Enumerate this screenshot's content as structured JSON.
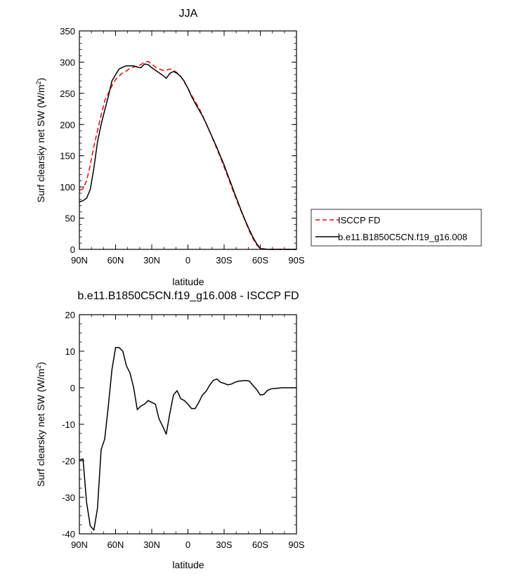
{
  "chart_data": [
    {
      "type": "line",
      "title": "JJA",
      "xlabel": "latitude",
      "ylabel_main": "Surf clearsky net SW (W/m",
      "ylabel_sup": "2",
      "ylabel_tail": ")",
      "xlim": [
        90,
        -90
      ],
      "ylim": [
        0,
        350
      ],
      "xticks": [
        90,
        60,
        30,
        0,
        -30,
        -60,
        -90
      ],
      "xtick_labels": [
        "90N",
        "60N",
        "30N",
        "0",
        "30S",
        "60S",
        "90S"
      ],
      "yticks": [
        0,
        50,
        100,
        150,
        200,
        250,
        300,
        350
      ],
      "ytick_labels": [
        "0",
        "50",
        "100",
        "150",
        "200",
        "250",
        "300",
        "350"
      ],
      "legend_position": "right",
      "series": [
        {
          "name": "ISCCP FD",
          "color": "#ff0000",
          "dash": "dashed",
          "x": [
            90,
            87,
            84,
            81,
            78,
            75,
            72,
            69,
            66,
            63,
            60,
            57,
            54,
            51,
            48,
            45,
            42,
            39,
            36,
            33,
            30,
            27,
            24,
            21,
            18,
            15,
            12,
            9,
            6,
            3,
            0,
            -3,
            -6,
            -9,
            -12,
            -15,
            -18,
            -21,
            -24,
            -27,
            -30,
            -33,
            -36,
            -39,
            -42,
            -45,
            -48,
            -51,
            -54,
            -57,
            -60,
            -63,
            -66,
            -69,
            -72,
            -75,
            -78,
            -81,
            -84,
            -87,
            -90
          ],
          "y": [
            95,
            97,
            110,
            135,
            165,
            190,
            215,
            238,
            250,
            262,
            272,
            278,
            283,
            286,
            290,
            292,
            294,
            296,
            300,
            301,
            297,
            292,
            289,
            287,
            287,
            289,
            287,
            283,
            277,
            268,
            258,
            247,
            237,
            227,
            215,
            202,
            189,
            175,
            161,
            147,
            132,
            117,
            101,
            86,
            71,
            57,
            43,
            29,
            17,
            7,
            2,
            1,
            0,
            0,
            0,
            0,
            0,
            0,
            0,
            0,
            0
          ]
        },
        {
          "name": "b.e11.B1850C5CN.f19_g16.008",
          "color": "#000000",
          "dash": "solid",
          "x": [
            90,
            87,
            84,
            81,
            78,
            75,
            72,
            69,
            66,
            63,
            60,
            57,
            54,
            51,
            48,
            45,
            42,
            39,
            36,
            33,
            30,
            27,
            24,
            21,
            18,
            15,
            12,
            9,
            6,
            3,
            0,
            -3,
            -6,
            -9,
            -12,
            -15,
            -18,
            -21,
            -24,
            -27,
            -30,
            -33,
            -36,
            -39,
            -42,
            -45,
            -48,
            -51,
            -54,
            -57,
            -60,
            -63,
            -66,
            -69,
            -72,
            -75,
            -78,
            -81,
            -84,
            -87,
            -90
          ],
          "y": [
            76,
            78,
            82,
            96,
            130,
            172,
            200,
            223,
            245,
            270,
            280,
            289,
            292,
            294,
            294,
            294,
            292,
            291,
            297,
            296,
            291,
            287,
            283,
            279,
            274,
            282,
            285,
            282,
            277,
            269,
            258,
            245,
            234,
            224,
            214,
            202,
            189,
            176,
            163,
            149,
            135,
            119,
            104,
            88,
            73,
            58,
            44,
            31,
            19,
            9,
            1,
            0.5,
            0,
            0,
            0,
            0,
            0,
            0,
            0,
            0,
            0
          ]
        }
      ]
    },
    {
      "type": "line",
      "title": "b.e11.B1850C5CN.f19_g16.008 - ISCCP FD",
      "xlabel": "latitude",
      "ylabel_main": "Surf clearsky net SW (W/m",
      "ylabel_sup": "2",
      "ylabel_tail": ")",
      "xlim": [
        90,
        -90
      ],
      "ylim": [
        -40,
        20
      ],
      "xticks": [
        90,
        60,
        30,
        0,
        -30,
        -60,
        -90
      ],
      "xtick_labels": [
        "90N",
        "60N",
        "30N",
        "0",
        "30S",
        "60S",
        "90S"
      ],
      "yticks": [
        -40,
        -30,
        -20,
        -10,
        0,
        10,
        20
      ],
      "ytick_labels": [
        "-40",
        "-30",
        "-20",
        "-10",
        "0",
        "10",
        "20"
      ],
      "series": [
        {
          "color": "#000000",
          "dash": "solid",
          "x": [
            90,
            87,
            84,
            81,
            78,
            75,
            72,
            69,
            66,
            63,
            60,
            57,
            54,
            51,
            48,
            45,
            42,
            39,
            36,
            33,
            30,
            27,
            24,
            21,
            18,
            15,
            12,
            9,
            6,
            3,
            0,
            -3,
            -6,
            -9,
            -12,
            -15,
            -18,
            -21,
            -24,
            -27,
            -30,
            -33,
            -36,
            -39,
            -42,
            -45,
            -48,
            -51,
            -54,
            -57,
            -60,
            -63,
            -66,
            -69,
            -72,
            -75,
            -78,
            -81,
            -84,
            -87,
            -90
          ],
          "y": [
            -19.8,
            -19.5,
            -31.5,
            -37.8,
            -39,
            -33,
            -17,
            -14,
            -5,
            5,
            11,
            11,
            10,
            6,
            4,
            0,
            -6,
            -5,
            -4.5,
            -3.5,
            -4,
            -4.5,
            -8.5,
            -10.5,
            -12.7,
            -7,
            -2,
            -0.8,
            -3,
            -3.5,
            -4.5,
            -5.7,
            -5.7,
            -4,
            -2,
            -1,
            0.7,
            2.0,
            2.4,
            1.5,
            1.2,
            0.8,
            1.0,
            1.5,
            1.8,
            1.9,
            2.0,
            1.8,
            0.6,
            -0.5,
            -2.0,
            -1.8,
            -0.7,
            -0.3,
            -0.2,
            -0.1,
            0,
            0,
            0,
            0,
            0
          ]
        }
      ]
    }
  ]
}
